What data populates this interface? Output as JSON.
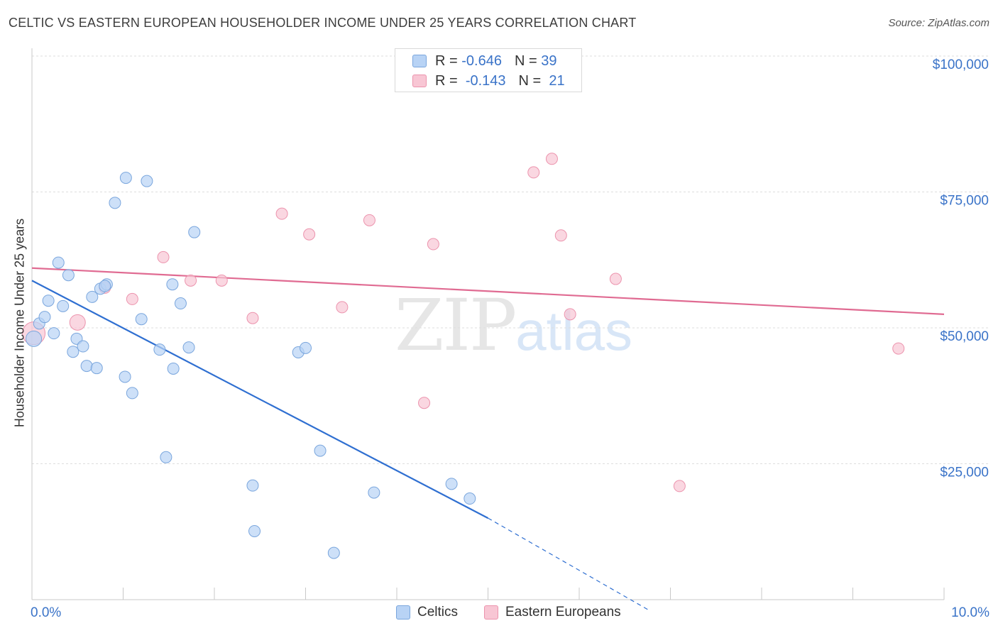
{
  "title": "CELTIC VS EASTERN EUROPEAN HOUSEHOLDER INCOME UNDER 25 YEARS CORRELATION CHART",
  "source": "Source: ZipAtlas.com",
  "watermark": {
    "zip": "ZIP",
    "atlas": "atlas"
  },
  "colors": {
    "celtics_fill": "#b8d3f5",
    "celtics_stroke": "#7aa6dd",
    "celtics_line": "#2f6fd1",
    "eastern_fill": "#f8c6d4",
    "eastern_stroke": "#ec93ad",
    "eastern_line": "#e06b92",
    "axis_label": "#3a73c8",
    "grid": "#dddddd"
  },
  "legend_top": {
    "r_label": "R =",
    "n_label": "N =",
    "celtics": {
      "r": "-0.646",
      "n": "39"
    },
    "eastern": {
      "r": "-0.143",
      "n": "21"
    }
  },
  "chart_data": {
    "type": "scatter",
    "title": "CELTIC VS EASTERN EUROPEAN HOUSEHOLDER INCOME UNDER 25 YEARS CORRELATION CHART",
    "xlabel": "",
    "ylabel": "Householder Income Under 25 years",
    "xlim": [
      0,
      10
    ],
    "ylim": [
      0,
      100000
    ],
    "x_tick_labels": [
      "0.0%",
      "10.0%"
    ],
    "y_ticks": [
      25000,
      50000,
      75000,
      100000
    ],
    "y_tick_labels": [
      "$25,000",
      "$50,000",
      "$75,000",
      "$100,000"
    ],
    "grid": true,
    "legend": "bottom",
    "series": [
      {
        "name": "Celtics",
        "points": [
          [
            0.02,
            48000
          ],
          [
            0.08,
            50800
          ],
          [
            0.14,
            52000
          ],
          [
            0.18,
            55000
          ],
          [
            0.24,
            49000
          ],
          [
            0.29,
            62000
          ],
          [
            0.34,
            54000
          ],
          [
            0.4,
            59700
          ],
          [
            0.45,
            45600
          ],
          [
            0.49,
            48000
          ],
          [
            0.56,
            46600
          ],
          [
            0.6,
            43000
          ],
          [
            0.66,
            55700
          ],
          [
            0.71,
            42600
          ],
          [
            0.75,
            57200
          ],
          [
            0.82,
            58000
          ],
          [
            1.02,
            41000
          ],
          [
            1.1,
            38000
          ],
          [
            0.91,
            73000
          ],
          [
            1.03,
            77600
          ],
          [
            1.2,
            51600
          ],
          [
            1.26,
            77000
          ],
          [
            1.4,
            46000
          ],
          [
            1.47,
            26200
          ],
          [
            1.55,
            42500
          ],
          [
            1.54,
            58000
          ],
          [
            1.63,
            54500
          ],
          [
            1.72,
            46400
          ],
          [
            1.78,
            67600
          ],
          [
            2.42,
            21000
          ],
          [
            2.44,
            12600
          ],
          [
            2.92,
            45500
          ],
          [
            3.0,
            46300
          ],
          [
            3.16,
            27400
          ],
          [
            3.31,
            8600
          ],
          [
            3.75,
            19700
          ],
          [
            4.6,
            21300
          ],
          [
            4.8,
            18600
          ],
          [
            0.8,
            57700
          ]
        ]
      },
      {
        "name": "Eastern Europeans",
        "points": [
          [
            0.02,
            49000
          ],
          [
            0.5,
            51000
          ],
          [
            0.8,
            57400
          ],
          [
            1.1,
            55300
          ],
          [
            1.44,
            63000
          ],
          [
            1.74,
            58700
          ],
          [
            2.08,
            58700
          ],
          [
            2.42,
            51800
          ],
          [
            2.74,
            71000
          ],
          [
            3.04,
            67200
          ],
          [
            3.4,
            53800
          ],
          [
            3.7,
            69800
          ],
          [
            4.3,
            36200
          ],
          [
            4.4,
            65400
          ],
          [
            5.5,
            78600
          ],
          [
            5.7,
            81100
          ],
          [
            5.8,
            67000
          ],
          [
            5.9,
            52500
          ],
          [
            6.4,
            59000
          ],
          [
            7.1,
            20900
          ],
          [
            9.5,
            46200
          ]
        ]
      }
    ],
    "trend_lines": [
      {
        "series": "Celtics",
        "x": [
          0.0,
          5.0
        ],
        "y": [
          58700,
          15000
        ],
        "dashed_to": [
          6.75,
          -1800
        ]
      },
      {
        "series": "Eastern Europeans",
        "x": [
          0.0,
          10.0
        ],
        "y": [
          61000,
          52500
        ]
      }
    ]
  }
}
